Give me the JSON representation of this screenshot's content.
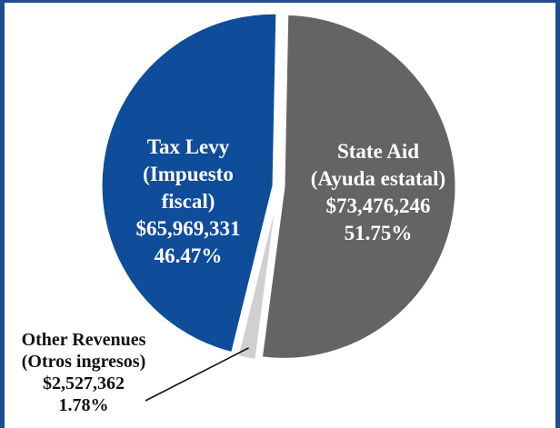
{
  "chart_data": {
    "type": "pie",
    "title": "",
    "slices": [
      {
        "name_lines": [
          "State Aid",
          "(Ayuda estatal)"
        ],
        "amount": "$73,476,246",
        "value": 73476246,
        "percent": 51.75,
        "percent_label": "51.75%",
        "color": "#646464"
      },
      {
        "name_lines": [
          "Other Revenues",
          "(Otros ingresos)"
        ],
        "amount": "$2,527,362",
        "value": 2527362,
        "percent": 1.78,
        "percent_label": "1.78%",
        "color": "#d0d0d0"
      },
      {
        "name_lines": [
          "Tax Levy",
          "(Impuesto",
          "fiscal)"
        ],
        "amount": "$65,969,331",
        "value": 65969331,
        "percent": 46.47,
        "percent_label": "46.47%",
        "color": "#0f4c9a"
      }
    ]
  },
  "colors": {
    "frame": "#1f4e8c",
    "slice_border": "#ffffff",
    "inside_text": "#ffffff",
    "outside_text": "#111111"
  }
}
